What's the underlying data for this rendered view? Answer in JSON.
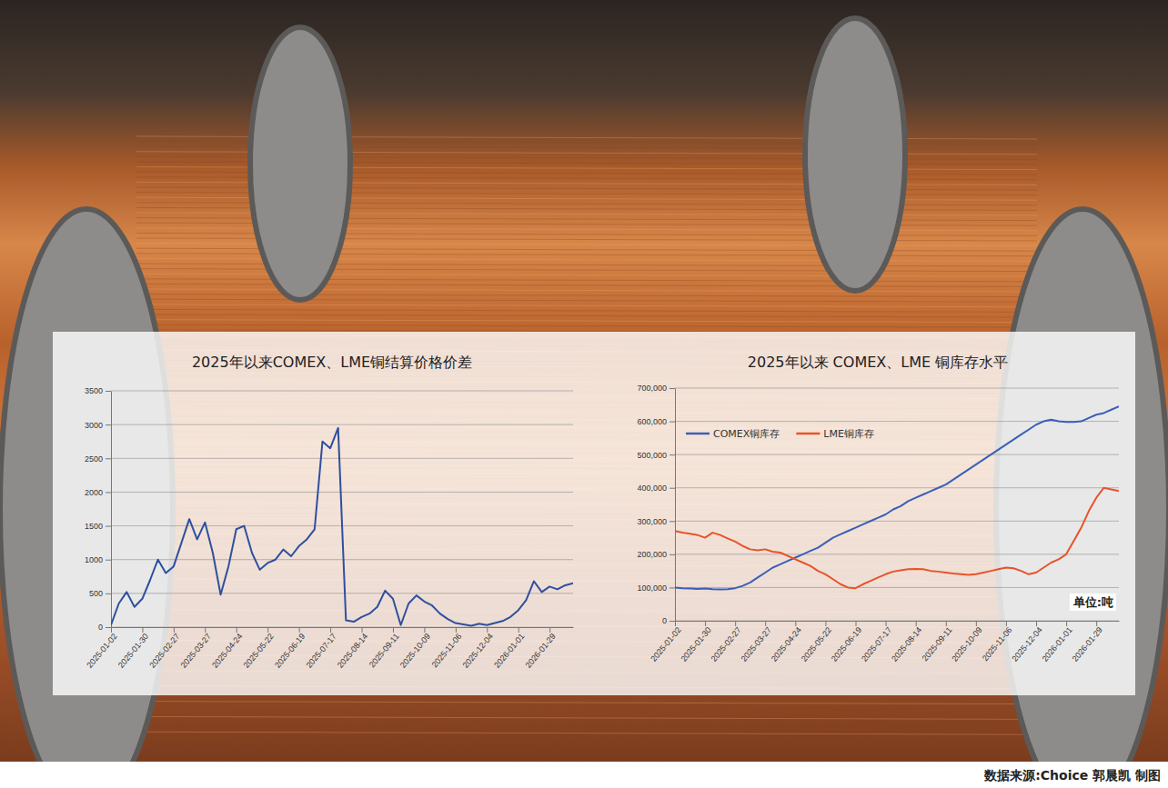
{
  "footer": "数据来源:Choice 郭晨凯 制图",
  "chart_data": [
    {
      "type": "line",
      "title": "2025年以来COMEX、LME铜结算价格价差",
      "color": "#2e4f9e",
      "grid": true,
      "x": [
        "2025-01-02",
        "2025-01-09",
        "2025-01-16",
        "2025-01-23",
        "2025-01-30",
        "2025-02-06",
        "2025-02-13",
        "2025-02-20",
        "2025-02-27",
        "2025-03-06",
        "2025-03-13",
        "2025-03-20",
        "2025-03-27",
        "2025-04-03",
        "2025-04-10",
        "2025-04-17",
        "2025-04-24",
        "2025-05-01",
        "2025-05-08",
        "2025-05-15",
        "2025-05-22",
        "2025-05-29",
        "2025-06-05",
        "2025-06-12",
        "2025-06-19",
        "2025-06-26",
        "2025-07-03",
        "2025-07-10",
        "2025-07-17",
        "2025-07-24",
        "2025-07-31",
        "2025-08-07",
        "2025-08-14",
        "2025-08-21",
        "2025-08-28",
        "2025-09-04",
        "2025-09-11",
        "2025-09-18",
        "2025-09-25",
        "2025-10-02",
        "2025-10-09",
        "2025-10-16",
        "2025-10-23",
        "2025-10-30",
        "2025-11-06",
        "2025-11-13",
        "2025-11-20",
        "2025-11-27",
        "2025-12-04",
        "2025-12-11",
        "2025-12-18",
        "2025-12-25",
        "2026-01-01",
        "2026-01-08",
        "2026-01-15",
        "2026-01-22",
        "2026-01-29",
        "2026-02-05",
        "2026-02-12",
        "2026-02-19"
      ],
      "values": [
        30,
        350,
        520,
        300,
        420,
        700,
        1000,
        800,
        900,
        1250,
        1600,
        1300,
        1550,
        1100,
        480,
        900,
        1450,
        1500,
        1100,
        850,
        950,
        1000,
        1150,
        1050,
        1200,
        1300,
        1450,
        2750,
        2650,
        2950,
        100,
        80,
        150,
        200,
        300,
        540,
        420,
        30,
        350,
        470,
        380,
        320,
        200,
        120,
        60,
        40,
        20,
        50,
        30,
        60,
        90,
        150,
        250,
        400,
        680,
        520,
        600,
        560,
        620,
        650
      ],
      "xlim": [
        "2025-01-02",
        "2026-02-19"
      ],
      "xticks": [
        "2025-01-02",
        "2025-01-30",
        "2025-02-27",
        "2025-03-27",
        "2025-04-24",
        "2025-05-22",
        "2025-06-19",
        "2025-07-17",
        "2025-08-14",
        "2025-09-11",
        "2025-10-09",
        "2025-11-06",
        "2025-12-04",
        "2026-01-01",
        "2026-01-29"
      ],
      "ylim": [
        0,
        3500
      ],
      "yticks": [
        0,
        500,
        1000,
        1500,
        2000,
        2500,
        3000,
        3500
      ]
    },
    {
      "type": "line",
      "title": "2025年以来 COMEX、LME 铜库存水平",
      "annotation": "单位:吨",
      "grid": true,
      "legend": "upper left",
      "x": [
        "2025-01-02",
        "2025-01-09",
        "2025-01-16",
        "2025-01-23",
        "2025-01-30",
        "2025-02-06",
        "2025-02-13",
        "2025-02-20",
        "2025-02-27",
        "2025-03-06",
        "2025-03-13",
        "2025-03-20",
        "2025-03-27",
        "2025-04-03",
        "2025-04-10",
        "2025-04-17",
        "2025-04-24",
        "2025-05-01",
        "2025-05-08",
        "2025-05-15",
        "2025-05-22",
        "2025-05-29",
        "2025-06-05",
        "2025-06-12",
        "2025-06-19",
        "2025-06-26",
        "2025-07-03",
        "2025-07-10",
        "2025-07-17",
        "2025-07-24",
        "2025-07-31",
        "2025-08-07",
        "2025-08-14",
        "2025-08-21",
        "2025-08-28",
        "2025-09-04",
        "2025-09-11",
        "2025-09-18",
        "2025-09-25",
        "2025-10-02",
        "2025-10-09",
        "2025-10-16",
        "2025-10-23",
        "2025-10-30",
        "2025-11-06",
        "2025-11-13",
        "2025-11-20",
        "2025-11-27",
        "2025-12-04",
        "2025-12-11",
        "2025-12-18",
        "2025-12-25",
        "2026-01-01",
        "2026-01-08",
        "2026-01-15",
        "2026-01-22",
        "2026-01-29",
        "2026-02-05",
        "2026-02-12",
        "2026-02-19"
      ],
      "series": [
        {
          "name": "COMEX铜库存",
          "color": "#3a5fb8",
          "values": [
            100000,
            98000,
            97000,
            96000,
            97000,
            95000,
            94000,
            95000,
            98000,
            105000,
            115000,
            130000,
            145000,
            160000,
            170000,
            180000,
            190000,
            200000,
            210000,
            220000,
            235000,
            250000,
            260000,
            270000,
            280000,
            290000,
            300000,
            310000,
            320000,
            335000,
            345000,
            360000,
            370000,
            380000,
            390000,
            400000,
            410000,
            425000,
            440000,
            455000,
            470000,
            485000,
            500000,
            515000,
            530000,
            545000,
            560000,
            575000,
            590000,
            600000,
            605000,
            600000,
            598000,
            598000,
            600000,
            610000,
            620000,
            625000,
            635000,
            645000
          ]
        },
        {
          "name": "LME铜库存",
          "color": "#e8532a",
          "values": [
            270000,
            265000,
            262000,
            258000,
            250000,
            265000,
            258000,
            248000,
            238000,
            225000,
            215000,
            212000,
            215000,
            208000,
            205000,
            195000,
            185000,
            175000,
            165000,
            150000,
            140000,
            125000,
            110000,
            100000,
            98000,
            110000,
            120000,
            130000,
            140000,
            148000,
            152000,
            155000,
            156000,
            155000,
            150000,
            148000,
            145000,
            142000,
            140000,
            138000,
            140000,
            145000,
            150000,
            155000,
            160000,
            158000,
            150000,
            140000,
            145000,
            160000,
            175000,
            185000,
            200000,
            240000,
            280000,
            330000,
            370000,
            400000,
            395000,
            390000
          ]
        }
      ],
      "xlim": [
        "2025-01-02",
        "2026-02-19"
      ],
      "xticks": [
        "2025-01-02",
        "2025-01-30",
        "2025-02-27",
        "2025-03-27",
        "2025-04-24",
        "2025-05-22",
        "2025-06-19",
        "2025-07-17",
        "2025-08-14",
        "2025-09-11",
        "2025-10-09",
        "2025-11-06",
        "2025-12-04",
        "2026-01-01",
        "2026-01-29"
      ],
      "ylim": [
        0,
        700000
      ],
      "yticks": [
        0,
        {
          "value": 100000,
          "label": "100,000"
        },
        {
          "value": 200000,
          "label": "200,000"
        },
        {
          "value": 300000,
          "label": "300,000"
        },
        {
          "value": 400000,
          "label": "400,000"
        },
        {
          "value": 500000,
          "label": "500,000"
        },
        {
          "value": 600000,
          "label": "600,000"
        },
        {
          "value": 700000,
          "label": "700,000"
        }
      ]
    }
  ]
}
